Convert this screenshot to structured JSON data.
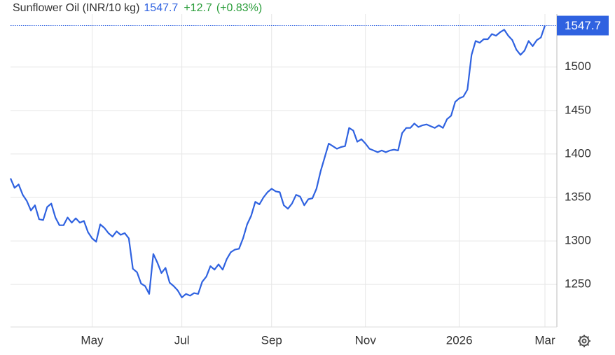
{
  "header": {
    "title": "Sunflower Oil (INR/10 kg)",
    "price": "1547.7",
    "change": "+12.7",
    "change_pct": "(+0.83%)"
  },
  "chart_data": {
    "type": "line",
    "color": "#2f62e0",
    "categories": [
      null,
      null,
      null,
      null,
      null,
      null,
      null,
      null,
      null,
      null,
      null,
      null,
      null,
      null,
      null,
      null,
      null,
      null,
      null,
      null,
      "May",
      null,
      null,
      null,
      null,
      null,
      null,
      null,
      null,
      null,
      null,
      null,
      null,
      null,
      null,
      null,
      null,
      null,
      null,
      null,
      null,
      null,
      "Jul",
      null,
      null,
      null,
      null,
      null,
      null,
      null,
      null,
      null,
      null,
      null,
      null,
      null,
      null,
      null,
      null,
      null,
      null,
      null,
      null,
      null,
      "Sep",
      null,
      null,
      null,
      null,
      null,
      null,
      null,
      null,
      null,
      null,
      null,
      null,
      null,
      null,
      null,
      null,
      null,
      null,
      null,
      null,
      null,
      null,
      "Nov",
      null,
      null,
      null,
      null,
      null,
      null,
      null,
      null,
      null,
      null,
      null,
      null,
      null,
      null,
      null,
      null,
      null,
      null,
      null,
      null,
      null,
      null,
      "2026",
      null,
      null,
      null,
      null,
      null,
      null,
      null,
      null,
      null,
      null,
      null,
      null,
      null,
      null,
      null,
      null,
      null,
      null,
      null,
      null,
      "Mar"
    ],
    "values": [
      1372,
      1361,
      1365,
      1353,
      1346,
      1335,
      1341,
      1325,
      1324,
      1339,
      1343,
      1327,
      1318,
      1318,
      1327,
      1321,
      1326,
      1321,
      1323,
      1310,
      1303,
      1299,
      1319,
      1315,
      1309,
      1305,
      1311,
      1307,
      1309,
      1303,
      1268,
      1264,
      1251,
      1248,
      1239,
      1285,
      1275,
      1263,
      1269,
      1252,
      1248,
      1243,
      1235,
      1239,
      1237,
      1240,
      1239,
      1253,
      1259,
      1271,
      1267,
      1273,
      1267,
      1279,
      1287,
      1290,
      1291,
      1303,
      1319,
      1329,
      1345,
      1342,
      1350,
      1356,
      1360,
      1357,
      1356,
      1341,
      1337,
      1343,
      1353,
      1351,
      1341,
      1348,
      1349,
      1360,
      1380,
      1396,
      1412,
      1409,
      1406,
      1408,
      1409,
      1430,
      1427,
      1414,
      1417,
      1412,
      1406,
      1404,
      1402,
      1404,
      1402,
      1404,
      1405,
      1404,
      1424,
      1430,
      1430,
      1435,
      1431,
      1433,
      1434,
      1432,
      1430,
      1433,
      1430,
      1440,
      1444,
      1460,
      1464,
      1466,
      1474,
      1514,
      1530,
      1528,
      1532,
      1532,
      1538,
      1536,
      1540,
      1543,
      1536,
      1531,
      1520,
      1514,
      1519,
      1530,
      1524,
      1531,
      1534,
      1547.7
    ],
    "ylim": [
      1201,
      1561
    ],
    "yticks": [
      1250,
      1300,
      1350,
      1400,
      1450,
      1500
    ],
    "grid": true
  }
}
